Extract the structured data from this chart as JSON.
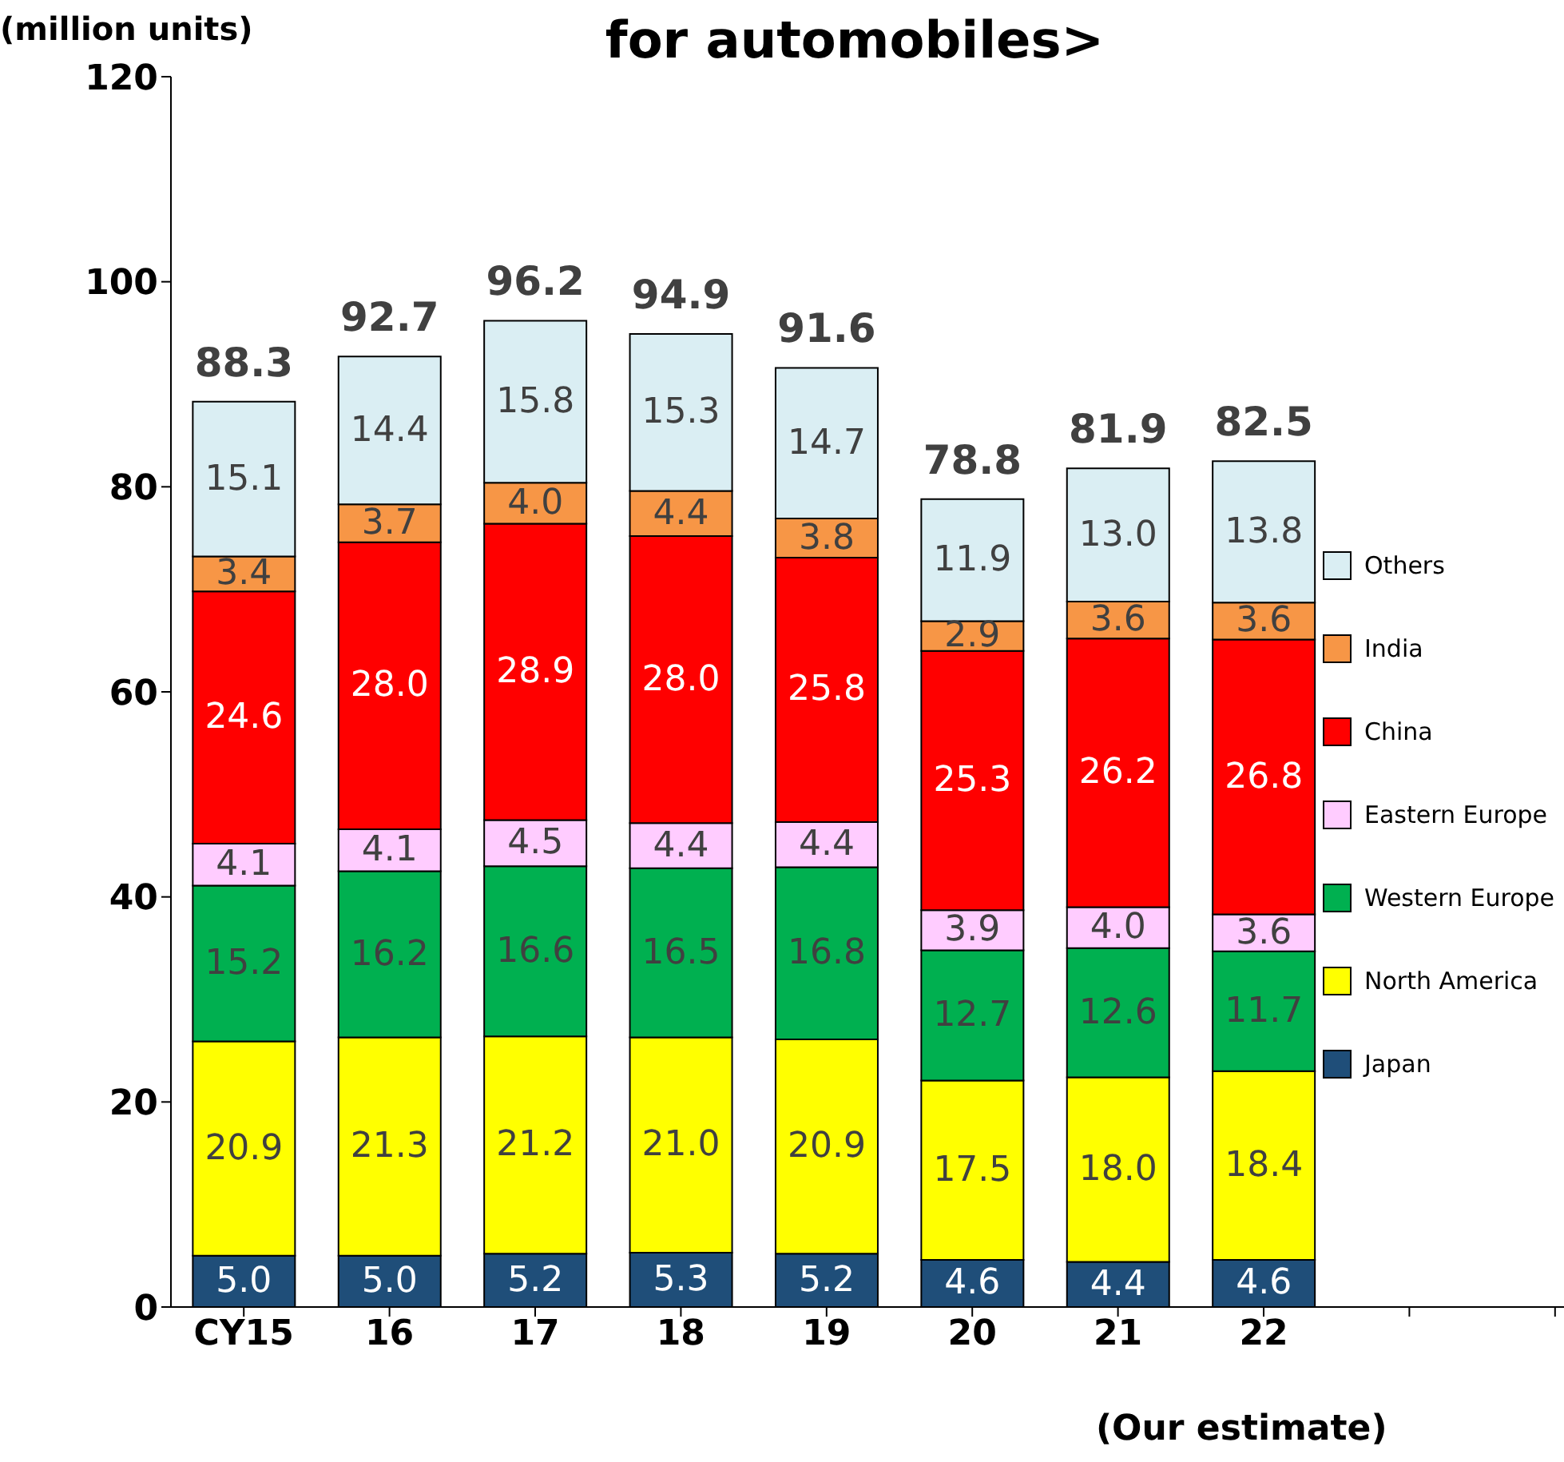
{
  "chart_data": {
    "type": "bar",
    "title": "for automobiles>",
    "ylabel": "(million units)",
    "annotations": [
      "(Our estimate)"
    ],
    "categories": [
      "CY15",
      "16",
      "17",
      "18",
      "19",
      "20",
      "21",
      "22",
      null,
      null
    ],
    "stacked": true,
    "legend": "right",
    "grid": false,
    "ylim": [
      0,
      120
    ],
    "yticks": [
      0,
      20,
      40,
      60,
      80,
      100,
      120
    ],
    "totals": [
      "88.3",
      "92.7",
      "96.2",
      "94.9",
      "91.6",
      "78.8",
      "81.9",
      "82.5",
      null,
      null
    ],
    "series": [
      {
        "name": "Japan",
        "color": "#1f4e79",
        "values": [
          5.0,
          5.0,
          5.2,
          5.3,
          5.2,
          4.6,
          4.4,
          4.6,
          null,
          null
        ],
        "value_labels": [
          "5.0",
          "5.0",
          "5.2",
          "5.3",
          "5.2",
          "4.6",
          "4.4",
          "4.6",
          null,
          null
        ]
      },
      {
        "name": "North America",
        "color": "#ffff00",
        "values": [
          20.9,
          21.3,
          21.2,
          21.0,
          20.9,
          17.5,
          18.0,
          18.4,
          null,
          null
        ],
        "value_labels": [
          "20.9",
          "21.3",
          "21.2",
          "21.0",
          "20.9",
          "17.5",
          "18.0",
          "18.4",
          null,
          null
        ]
      },
      {
        "name": "Western Europe",
        "color": "#00b050",
        "values": [
          15.2,
          16.2,
          16.6,
          16.5,
          16.8,
          12.7,
          12.6,
          11.7,
          null,
          null
        ],
        "value_labels": [
          "15.2",
          "16.2",
          "16.6",
          "16.5",
          "16.8",
          "12.7",
          "12.6",
          "11.7",
          null,
          null
        ]
      },
      {
        "name": "Eastern Europe",
        "color": "#ffccff",
        "values": [
          4.1,
          4.1,
          4.5,
          4.4,
          4.4,
          3.9,
          4.0,
          3.6,
          null,
          null
        ],
        "value_labels": [
          "4.1",
          "4.1",
          "4.5",
          "4.4",
          "4.4",
          "3.9",
          "4.0",
          "3.6",
          null,
          null
        ]
      },
      {
        "name": "China",
        "color": "#ff0000",
        "values": [
          24.6,
          28.0,
          28.9,
          28.0,
          25.8,
          25.3,
          26.2,
          26.8,
          null,
          null
        ],
        "value_labels": [
          "24.6",
          "28.0",
          "28.9",
          "28.0",
          "25.8",
          "25.3",
          "26.2",
          "26.8",
          null,
          null
        ]
      },
      {
        "name": "India",
        "color": "#f79646",
        "values": [
          3.4,
          3.7,
          4.0,
          4.4,
          3.8,
          2.9,
          3.6,
          3.6,
          null,
          null
        ],
        "value_labels": [
          "3.4",
          "3.7",
          "4.0",
          "4.4",
          "3.8",
          "2.9",
          "3.6",
          "3.6",
          null,
          null
        ]
      },
      {
        "name": "Others",
        "color": "#daeef3",
        "values": [
          15.1,
          14.4,
          15.8,
          15.3,
          14.7,
          11.9,
          13.0,
          13.8,
          null,
          null
        ],
        "value_labels": [
          "15.1",
          "14.4",
          "15.8",
          "15.3",
          "14.7",
          "11.9",
          "13.0",
          "13.8",
          null,
          null
        ]
      }
    ]
  }
}
